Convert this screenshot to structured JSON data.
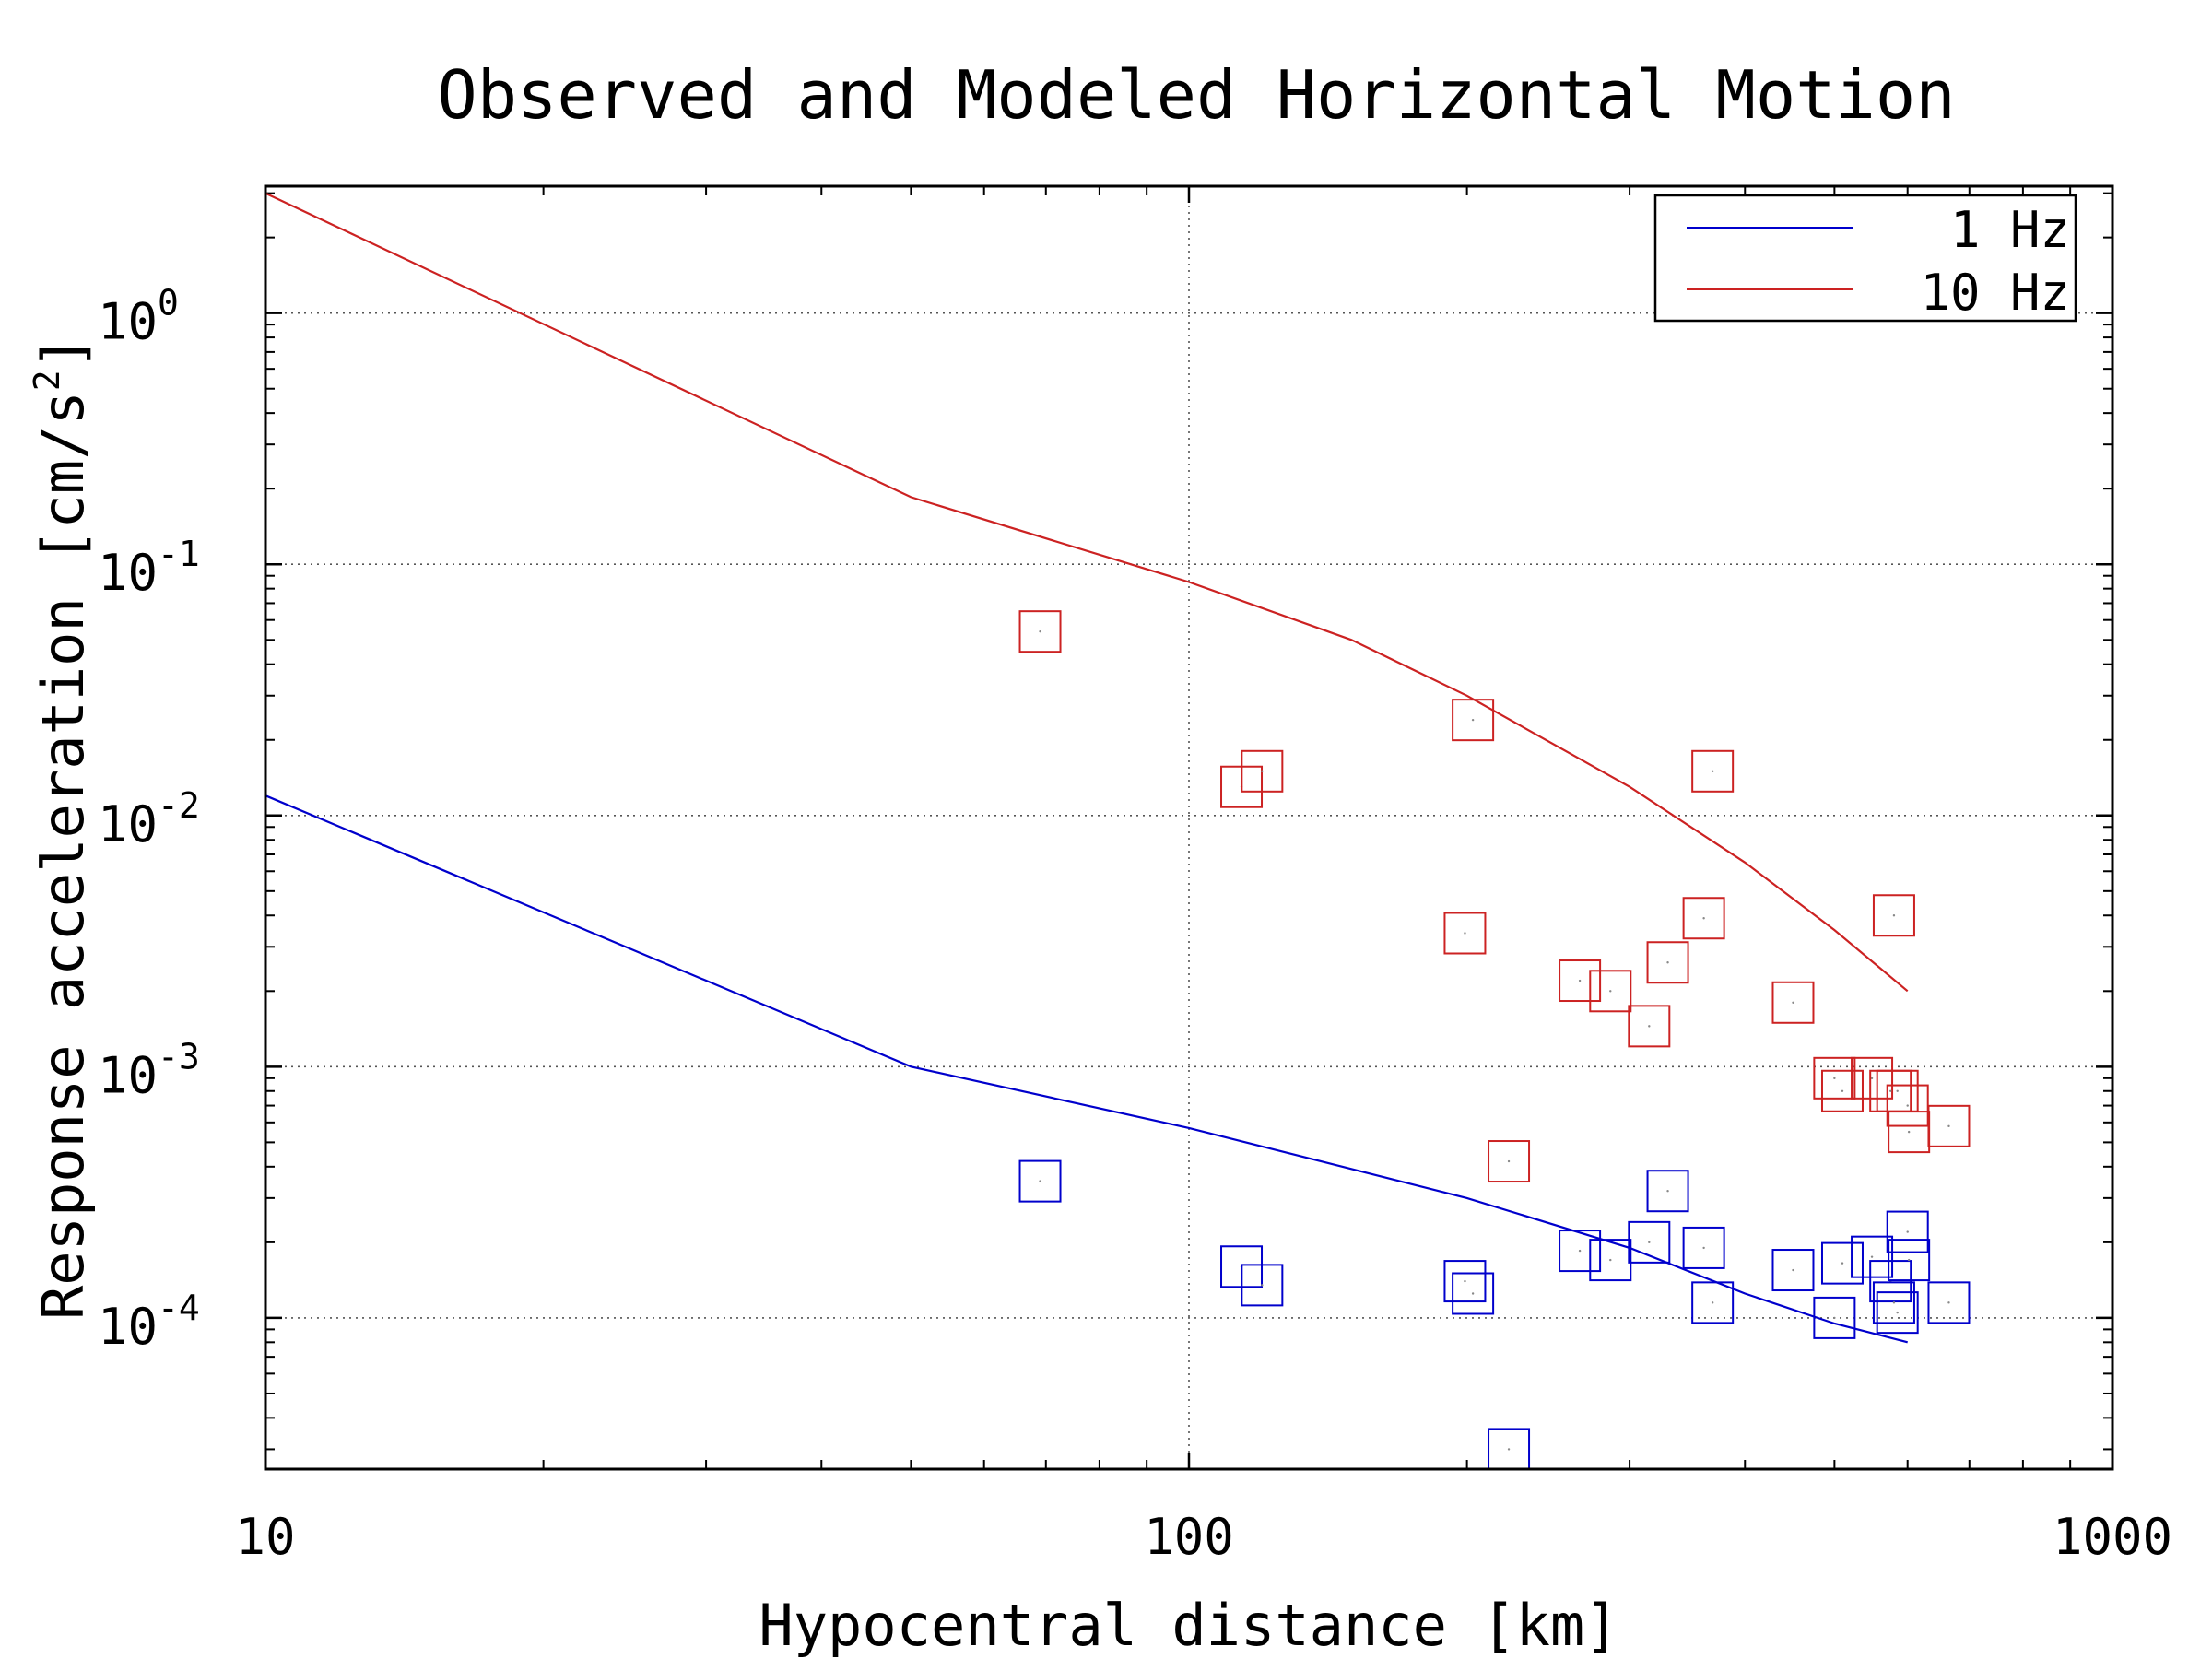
{
  "chart_data": {
    "type": "scatter",
    "title": "Observed and Modeled Horizontal Motion",
    "xlabel": "Hypocentral distance [km]",
    "ylabel": "Response acceleration [cm/s",
    "ylabel_sup": "2",
    "ylabel_close": "]",
    "x_scale": "log",
    "y_scale": "log",
    "xlim": [
      10,
      1000
    ],
    "ylim": [
      2.5e-05,
      3.2
    ],
    "grid": true,
    "legend_position": "top-right",
    "x_ticks": [
      {
        "value": 10,
        "label": "10"
      },
      {
        "value": 100,
        "label": "100"
      },
      {
        "value": 1000,
        "label": "1000"
      }
    ],
    "y_ticks": [
      {
        "value": 1,
        "base": "10",
        "exp": "0"
      },
      {
        "value": 0.1,
        "base": "10",
        "exp": "-1"
      },
      {
        "value": 0.01,
        "base": "10",
        "exp": "-2"
      },
      {
        "value": 0.001,
        "base": "10",
        "exp": "-3"
      },
      {
        "value": 0.0001,
        "base": "10",
        "exp": "-4"
      }
    ],
    "series": [
      {
        "name": "1 Hz",
        "color": "#0000cc",
        "model": {
          "x": [
            10,
            50,
            100,
            200,
            300,
            400,
            500,
            600
          ],
          "y": [
            0.012,
            0.001,
            0.00057,
            0.0003,
            0.00019,
            0.000125,
            9.5e-05,
            8e-05
          ]
        },
        "observed": {
          "x": [
            69,
            114,
            120,
            199,
            203,
            222,
            265,
            286,
            315,
            330,
            361,
            369,
            451,
            500,
            510,
            549,
            575,
            580,
            585,
            600,
            602,
            665
          ],
          "y": [
            0.00035,
            0.00016,
            0.000135,
            0.00014,
            0.000125,
            3e-05,
            0.000185,
            0.00017,
            0.0002,
            0.00032,
            0.00019,
            0.000115,
            0.000155,
            0.0001,
            0.000165,
            0.000175,
            0.00014,
            0.000115,
            0.000105,
            0.00022,
            0.00017,
            0.000115
          ]
        }
      },
      {
        "name": "10 Hz",
        "color": "#cc2222",
        "model": {
          "x": [
            10,
            50,
            100,
            150,
            200,
            300,
            400,
            500,
            600
          ],
          "y": [
            3.0,
            0.185,
            0.085,
            0.05,
            0.03,
            0.013,
            0.0065,
            0.0035,
            0.002
          ]
        },
        "observed": {
          "x": [
            69,
            114,
            120,
            199,
            203,
            222,
            265,
            286,
            315,
            330,
            361,
            369,
            451,
            500,
            510,
            549,
            575,
            580,
            585,
            600,
            602,
            665
          ],
          "y": [
            0.054,
            0.013,
            0.015,
            0.0034,
            0.024,
            0.00042,
            0.0022,
            0.002,
            0.00145,
            0.0026,
            0.0039,
            0.015,
            0.0018,
            0.0009,
            0.0008,
            0.0009,
            0.0008,
            0.004,
            0.0008,
            0.0007,
            0.00055,
            0.00058
          ]
        }
      }
    ]
  }
}
